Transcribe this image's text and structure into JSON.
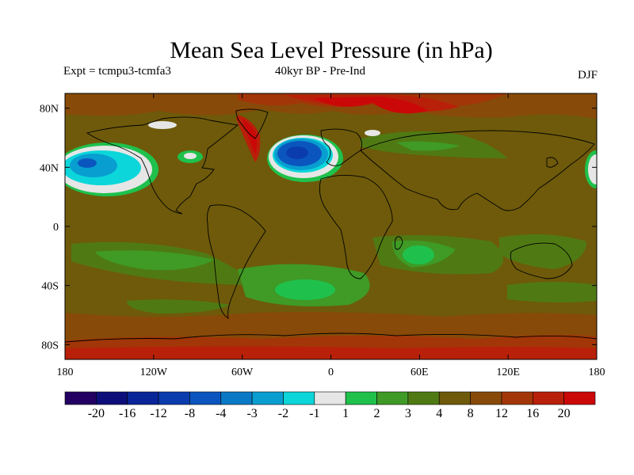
{
  "title": "Mean Sea Level Pressure (in hPa)",
  "subtitle_left": "Expt = tcmpu3-tcmfa3",
  "subtitle_center": "40kyr BP - Pre-Ind",
  "season": "DJF",
  "y_ticks": [
    "80N",
    "40N",
    "0",
    "40S",
    "80S"
  ],
  "x_ticks": [
    "180",
    "120W",
    "60W",
    "0",
    "60E",
    "120E",
    "180"
  ],
  "colorbar": {
    "labels": [
      "-20",
      "-16",
      "-12",
      "-8",
      "-4",
      "-3",
      "-2",
      "-1",
      "1",
      "2",
      "3",
      "4",
      "8",
      "12",
      "16",
      "20"
    ],
    "colors": [
      "#230062",
      "#0e0e7a",
      "#0a2598",
      "#0a3cae",
      "#0b56be",
      "#0a79c5",
      "#089ed0",
      "#0cd6da",
      "#e6e6e6",
      "#1fc14c",
      "#3f9a26",
      "#4f7a13",
      "#6e5a0a",
      "#884a08",
      "#a23608",
      "#b8200a",
      "#cb0808"
    ]
  },
  "map_colors": {
    "ocean_default": "#6e5a0a",
    "land_default": "#6e5a0a",
    "bands": {
      "lvl_4": "#4f7a13",
      "lvl_8": "#6e5a0a",
      "lvl_12": "#884a08",
      "lvl_16": "#a23608",
      "lvl_20": "#b8200a",
      "lvl_high": "#cb0808",
      "lvl_3": "#3f9a26",
      "lvl_2": "#1fc14c",
      "lvl_1": "#e6e6e6",
      "lvl_m1": "#0cd6da",
      "lvl_m2": "#089ed0",
      "lvl_m4": "#0b56be",
      "lvl_m8": "#0a3cae"
    }
  },
  "projection": {
    "lon_min": -180,
    "lon_max": 180,
    "lat_min": -90,
    "lat_max": 90
  }
}
